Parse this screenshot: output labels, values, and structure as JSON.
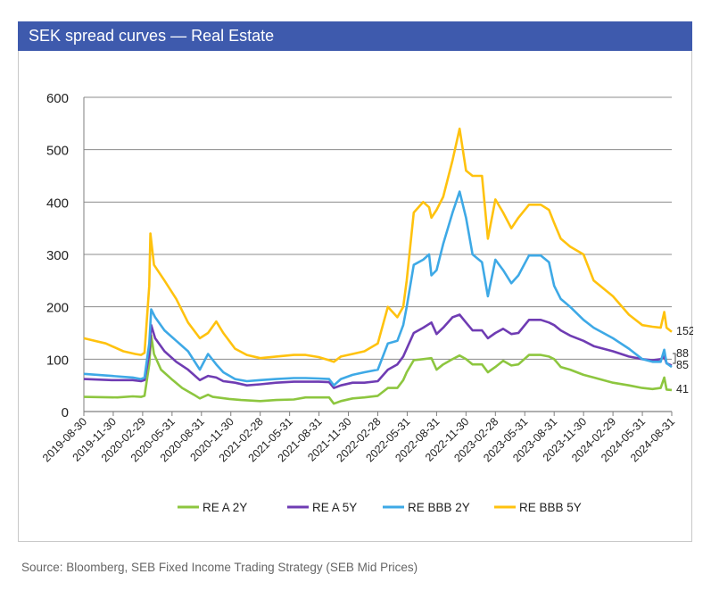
{
  "header": {
    "title": "SEK spread curves — Real Estate"
  },
  "source": "Source: Bloomberg, SEB Fixed Income Trading Strategy (SEB Mid Prices)",
  "chart_data": {
    "type": "line",
    "title": "SEK spread curves — Real Estate",
    "xlabel": "",
    "ylabel": "",
    "ylim": [
      0,
      600
    ],
    "yticks": [
      "0",
      "100",
      "200",
      "300",
      "400",
      "500",
      "600"
    ],
    "grid": true,
    "legend_position": "bottom",
    "xdomain": [
      2019.664,
      2024.664
    ],
    "xticks": [
      {
        "label": "2019-08-30",
        "t": 2019.664
      },
      {
        "label": "2019-11-30",
        "t": 2019.914
      },
      {
        "label": "2020-02-29",
        "t": 2020.164
      },
      {
        "label": "2020-05-31",
        "t": 2020.414
      },
      {
        "label": "2020-08-31",
        "t": 2020.664
      },
      {
        "label": "2020-11-30",
        "t": 2020.914
      },
      {
        "label": "2021-02-28",
        "t": 2021.164
      },
      {
        "label": "2021-05-31",
        "t": 2021.414
      },
      {
        "label": "2021-08-31",
        "t": 2021.664
      },
      {
        "label": "2021-11-30",
        "t": 2021.914
      },
      {
        "label": "2022-02-28",
        "t": 2022.164
      },
      {
        "label": "2022-05-31",
        "t": 2022.414
      },
      {
        "label": "2022-08-31",
        "t": 2022.664
      },
      {
        "label": "2022-11-30",
        "t": 2022.914
      },
      {
        "label": "2023-02-28",
        "t": 2023.164
      },
      {
        "label": "2023-05-31",
        "t": 2023.414
      },
      {
        "label": "2023-08-31",
        "t": 2023.664
      },
      {
        "label": "2023-11-30",
        "t": 2023.914
      },
      {
        "label": "2024-02-29",
        "t": 2024.164
      },
      {
        "label": "2024-05-31",
        "t": 2024.414
      },
      {
        "label": "2024-08-31",
        "t": 2024.664
      }
    ],
    "series": [
      {
        "name": "RE A 2Y",
        "color": "#8dc63f",
        "end_label": "41",
        "points": [
          [
            2019.664,
            28
          ],
          [
            2019.95,
            27
          ],
          [
            2020.08,
            29
          ],
          [
            2020.15,
            28
          ],
          [
            2020.18,
            30
          ],
          [
            2020.22,
            90
          ],
          [
            2020.237,
            145
          ],
          [
            2020.26,
            110
          ],
          [
            2020.32,
            80
          ],
          [
            2020.42,
            60
          ],
          [
            2020.5,
            45
          ],
          [
            2020.6,
            32
          ],
          [
            2020.65,
            25
          ],
          [
            2020.72,
            32
          ],
          [
            2020.76,
            28
          ],
          [
            2020.9,
            24
          ],
          [
            2021.0,
            22
          ],
          [
            2021.164,
            20
          ],
          [
            2021.3,
            22
          ],
          [
            2021.45,
            23
          ],
          [
            2021.55,
            27
          ],
          [
            2021.66,
            27
          ],
          [
            2021.75,
            27
          ],
          [
            2021.79,
            15
          ],
          [
            2021.85,
            20
          ],
          [
            2021.95,
            25
          ],
          [
            2022.05,
            27
          ],
          [
            2022.164,
            30
          ],
          [
            2022.25,
            45
          ],
          [
            2022.33,
            45
          ],
          [
            2022.38,
            60
          ],
          [
            2022.41,
            75
          ],
          [
            2022.47,
            98
          ],
          [
            2022.55,
            100
          ],
          [
            2022.62,
            102
          ],
          [
            2022.664,
            80
          ],
          [
            2022.72,
            90
          ],
          [
            2022.8,
            100
          ],
          [
            2022.86,
            107
          ],
          [
            2022.914,
            100
          ],
          [
            2022.97,
            90
          ],
          [
            2023.05,
            90
          ],
          [
            2023.1,
            75
          ],
          [
            2023.164,
            85
          ],
          [
            2023.23,
            97
          ],
          [
            2023.3,
            88
          ],
          [
            2023.36,
            90
          ],
          [
            2023.45,
            108
          ],
          [
            2023.55,
            108
          ],
          [
            2023.62,
            105
          ],
          [
            2023.664,
            100
          ],
          [
            2023.72,
            85
          ],
          [
            2023.8,
            80
          ],
          [
            2023.914,
            70
          ],
          [
            2024.0,
            65
          ],
          [
            2024.164,
            55
          ],
          [
            2024.3,
            50
          ],
          [
            2024.414,
            45
          ],
          [
            2024.5,
            43
          ],
          [
            2024.57,
            45
          ],
          [
            2024.6,
            65
          ],
          [
            2024.62,
            42
          ],
          [
            2024.664,
            41
          ]
        ]
      },
      {
        "name": "RE A 5Y",
        "color": "#6f3cb3",
        "end_label": "88",
        "points": [
          [
            2019.664,
            62
          ],
          [
            2019.9,
            60
          ],
          [
            2020.08,
            60
          ],
          [
            2020.15,
            58
          ],
          [
            2020.18,
            60
          ],
          [
            2020.22,
            110
          ],
          [
            2020.237,
            165
          ],
          [
            2020.27,
            140
          ],
          [
            2020.35,
            115
          ],
          [
            2020.45,
            95
          ],
          [
            2020.55,
            80
          ],
          [
            2020.65,
            60
          ],
          [
            2020.72,
            68
          ],
          [
            2020.79,
            65
          ],
          [
            2020.85,
            58
          ],
          [
            2020.95,
            55
          ],
          [
            2021.05,
            50
          ],
          [
            2021.164,
            52
          ],
          [
            2021.3,
            55
          ],
          [
            2021.45,
            57
          ],
          [
            2021.55,
            57
          ],
          [
            2021.66,
            57
          ],
          [
            2021.75,
            56
          ],
          [
            2021.79,
            45
          ],
          [
            2021.85,
            50
          ],
          [
            2021.95,
            55
          ],
          [
            2022.05,
            55
          ],
          [
            2022.164,
            58
          ],
          [
            2022.25,
            80
          ],
          [
            2022.33,
            90
          ],
          [
            2022.38,
            105
          ],
          [
            2022.41,
            120
          ],
          [
            2022.47,
            150
          ],
          [
            2022.55,
            160
          ],
          [
            2022.62,
            170
          ],
          [
            2022.664,
            148
          ],
          [
            2022.72,
            160
          ],
          [
            2022.8,
            180
          ],
          [
            2022.86,
            185
          ],
          [
            2022.914,
            170
          ],
          [
            2022.97,
            155
          ],
          [
            2023.05,
            155
          ],
          [
            2023.1,
            140
          ],
          [
            2023.164,
            150
          ],
          [
            2023.23,
            158
          ],
          [
            2023.3,
            148
          ],
          [
            2023.36,
            150
          ],
          [
            2023.45,
            175
          ],
          [
            2023.55,
            175
          ],
          [
            2023.62,
            170
          ],
          [
            2023.664,
            165
          ],
          [
            2023.72,
            155
          ],
          [
            2023.8,
            145
          ],
          [
            2023.914,
            135
          ],
          [
            2024.0,
            125
          ],
          [
            2024.164,
            115
          ],
          [
            2024.3,
            105
          ],
          [
            2024.414,
            100
          ],
          [
            2024.5,
            98
          ],
          [
            2024.57,
            100
          ],
          [
            2024.6,
            105
          ],
          [
            2024.62,
            92
          ],
          [
            2024.664,
            88
          ]
        ]
      },
      {
        "name": "RE BBB 2Y",
        "color": "#3ea9e6",
        "end_label": "85",
        "points": [
          [
            2019.664,
            72
          ],
          [
            2019.9,
            68
          ],
          [
            2020.08,
            65
          ],
          [
            2020.15,
            62
          ],
          [
            2020.18,
            65
          ],
          [
            2020.22,
            130
          ],
          [
            2020.237,
            195
          ],
          [
            2020.27,
            180
          ],
          [
            2020.35,
            155
          ],
          [
            2020.45,
            135
          ],
          [
            2020.55,
            115
          ],
          [
            2020.65,
            80
          ],
          [
            2020.72,
            110
          ],
          [
            2020.79,
            90
          ],
          [
            2020.85,
            75
          ],
          [
            2020.95,
            62
          ],
          [
            2021.05,
            58
          ],
          [
            2021.164,
            60
          ],
          [
            2021.3,
            62
          ],
          [
            2021.45,
            64
          ],
          [
            2021.55,
            64
          ],
          [
            2021.66,
            63
          ],
          [
            2021.75,
            62
          ],
          [
            2021.79,
            50
          ],
          [
            2021.85,
            62
          ],
          [
            2021.95,
            70
          ],
          [
            2022.05,
            75
          ],
          [
            2022.164,
            80
          ],
          [
            2022.25,
            130
          ],
          [
            2022.33,
            135
          ],
          [
            2022.38,
            165
          ],
          [
            2022.41,
            200
          ],
          [
            2022.47,
            280
          ],
          [
            2022.55,
            290
          ],
          [
            2022.6,
            300
          ],
          [
            2022.62,
            260
          ],
          [
            2022.664,
            270
          ],
          [
            2022.72,
            320
          ],
          [
            2022.8,
            380
          ],
          [
            2022.86,
            420
          ],
          [
            2022.914,
            370
          ],
          [
            2022.97,
            300
          ],
          [
            2023.05,
            285
          ],
          [
            2023.1,
            220
          ],
          [
            2023.164,
            290
          ],
          [
            2023.23,
            270
          ],
          [
            2023.3,
            245
          ],
          [
            2023.36,
            260
          ],
          [
            2023.45,
            298
          ],
          [
            2023.55,
            298
          ],
          [
            2023.62,
            285
          ],
          [
            2023.664,
            240
          ],
          [
            2023.72,
            215
          ],
          [
            2023.8,
            200
          ],
          [
            2023.914,
            175
          ],
          [
            2024.0,
            160
          ],
          [
            2024.164,
            140
          ],
          [
            2024.3,
            120
          ],
          [
            2024.414,
            100
          ],
          [
            2024.5,
            95
          ],
          [
            2024.57,
            95
          ],
          [
            2024.6,
            118
          ],
          [
            2024.62,
            92
          ],
          [
            2024.664,
            85
          ]
        ]
      },
      {
        "name": "RE BBB 5Y",
        "color": "#ffc20e",
        "end_label": "152",
        "points": [
          [
            2019.664,
            140
          ],
          [
            2019.85,
            130
          ],
          [
            2020.0,
            115
          ],
          [
            2020.1,
            110
          ],
          [
            2020.15,
            108
          ],
          [
            2020.18,
            112
          ],
          [
            2020.22,
            240
          ],
          [
            2020.23,
            340
          ],
          [
            2020.26,
            280
          ],
          [
            2020.35,
            250
          ],
          [
            2020.45,
            215
          ],
          [
            2020.55,
            170
          ],
          [
            2020.65,
            140
          ],
          [
            2020.72,
            150
          ],
          [
            2020.79,
            172
          ],
          [
            2020.85,
            150
          ],
          [
            2020.95,
            120
          ],
          [
            2021.05,
            108
          ],
          [
            2021.164,
            102
          ],
          [
            2021.3,
            105
          ],
          [
            2021.45,
            108
          ],
          [
            2021.55,
            108
          ],
          [
            2021.66,
            104
          ],
          [
            2021.75,
            98
          ],
          [
            2021.79,
            95
          ],
          [
            2021.85,
            105
          ],
          [
            2021.95,
            110
          ],
          [
            2022.05,
            115
          ],
          [
            2022.164,
            130
          ],
          [
            2022.25,
            200
          ],
          [
            2022.33,
            180
          ],
          [
            2022.38,
            200
          ],
          [
            2022.41,
            250
          ],
          [
            2022.47,
            380
          ],
          [
            2022.55,
            400
          ],
          [
            2022.6,
            390
          ],
          [
            2022.62,
            370
          ],
          [
            2022.664,
            385
          ],
          [
            2022.72,
            410
          ],
          [
            2022.8,
            480
          ],
          [
            2022.86,
            540
          ],
          [
            2022.914,
            460
          ],
          [
            2022.97,
            450
          ],
          [
            2023.05,
            450
          ],
          [
            2023.1,
            330
          ],
          [
            2023.164,
            405
          ],
          [
            2023.23,
            380
          ],
          [
            2023.3,
            350
          ],
          [
            2023.36,
            370
          ],
          [
            2023.45,
            395
          ],
          [
            2023.55,
            395
          ],
          [
            2023.62,
            385
          ],
          [
            2023.664,
            360
          ],
          [
            2023.72,
            330
          ],
          [
            2023.8,
            315
          ],
          [
            2023.914,
            300
          ],
          [
            2024.0,
            250
          ],
          [
            2024.164,
            220
          ],
          [
            2024.3,
            185
          ],
          [
            2024.414,
            165
          ],
          [
            2024.5,
            162
          ],
          [
            2024.57,
            160
          ],
          [
            2024.6,
            190
          ],
          [
            2024.62,
            160
          ],
          [
            2024.664,
            152
          ]
        ]
      }
    ]
  }
}
